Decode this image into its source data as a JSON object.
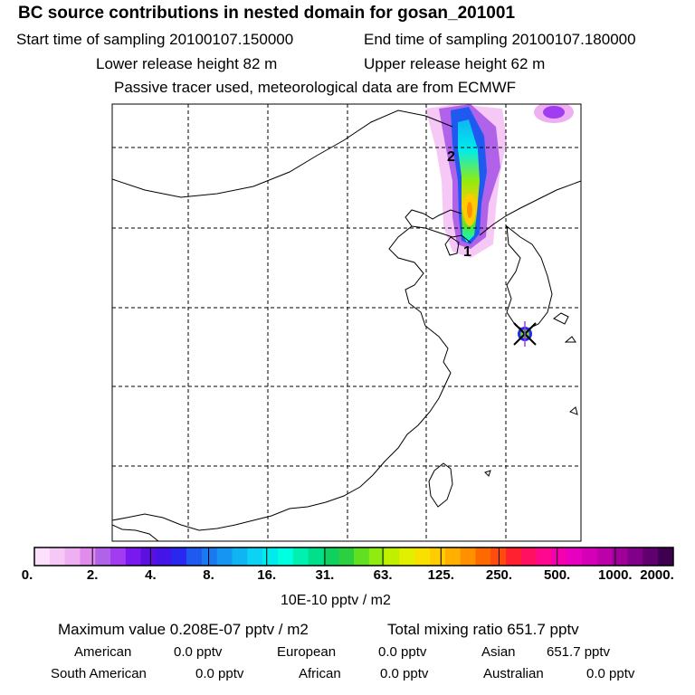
{
  "header": {
    "title": "BC  source contributions in nested domain for gosan_201001",
    "start_time": "Start time of sampling 20100107.150000",
    "end_time": "End time of sampling 20100107.180000",
    "lower_height": "Lower release height   82 m",
    "upper_height": "Upper release height   62 m",
    "tracer_note": "Passive tracer used, meteorological data are from ECMWF"
  },
  "chart_data": {
    "type": "heatmap",
    "title": "BC  source contributions in nested domain for gosan_201001",
    "plume_markers": [
      "1",
      "2"
    ],
    "receptor_marker": "gosan",
    "colorbar": {
      "ticks": [
        "0.",
        "2.",
        "4.",
        "8.",
        "16.",
        "31.",
        "63.",
        "125.",
        "250.",
        "500.",
        "1000.",
        "2000."
      ],
      "unit": "10E-10 pptv / m2",
      "colors": [
        "#fde0fb",
        "#f6c8f6",
        "#eeb0f2",
        "#e08ced",
        "#b063e8",
        "#a23cf0",
        "#7a18f0",
        "#5b10e0",
        "#4514e6",
        "#2828f0",
        "#1e5af0",
        "#1a78f0",
        "#1696f2",
        "#10b4f2",
        "#0cd2f4",
        "#00ecec",
        "#00ffe0",
        "#00f0b0",
        "#00e08a",
        "#10d060",
        "#2bd040",
        "#60e020",
        "#90ec10",
        "#c0f000",
        "#e0f000",
        "#f8e000",
        "#ffcc00",
        "#ffb000",
        "#ff9000",
        "#ff6a00",
        "#ff4a10",
        "#ff2030",
        "#ff1060",
        "#ff0890",
        "#f400b0",
        "#e800c0",
        "#d400b8",
        "#bc00aa",
        "#a0009a",
        "#80008a",
        "#60006e",
        "#3e004e"
      ]
    },
    "summary": {
      "maximum_value": "Maximum value  0.208E-07 pptv / m2",
      "total_mixing_ratio": "Total mixing ratio      651.7 pptv"
    },
    "regions": [
      {
        "name": "American",
        "value": "0.0 pptv"
      },
      {
        "name": "European",
        "value": "0.0 pptv"
      },
      {
        "name": "Asian",
        "value": "651.7 pptv"
      },
      {
        "name": "South American",
        "value": "0.0 pptv"
      },
      {
        "name": "African",
        "value": "0.0 pptv"
      },
      {
        "name": "Australian",
        "value": "0.0 pptv"
      }
    ]
  }
}
